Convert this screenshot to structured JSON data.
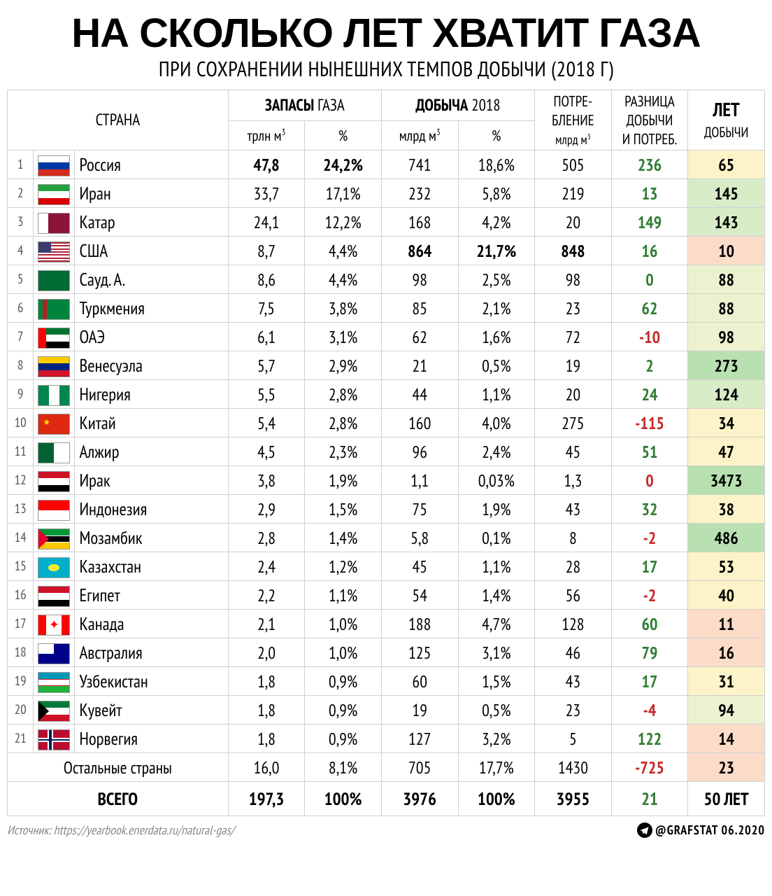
{
  "title": "НА СКОЛЬКО ЛЕТ ХВАТИТ ГАЗА",
  "subtitle": "ПРИ СОХРАНЕНИИ НЫНЕШНИХ ТЕМПОВ ДОБЫЧИ (2018 Г)",
  "headers": {
    "country": "СТРАНА",
    "reserves_group_b": "ЗАПАСЫ",
    "reserves_group_r": " ГАЗА",
    "production_group_b": "ДОБЫЧА",
    "production_group_r": " 2018",
    "reserves_unit": "трлн м",
    "reserves_pct": "%",
    "production_unit": "млрд м",
    "production_pct": "%",
    "consumption_l1": "ПОТРЕ-",
    "consumption_l2": "БЛЕНИЕ",
    "consumption_l3": "млрд м",
    "diff_l1": "РАЗНИЦА",
    "diff_l2": "ДОБЫЧИ",
    "diff_l3": "И ПОТРЕБ.",
    "years_l1": "ЛЕТ",
    "years_l2": "ДОБЫЧИ"
  },
  "year_tiers": {
    "very_high": {
      "min": 200,
      "color": "#b8e0b0"
    },
    "high": {
      "min": 100,
      "color": "#d9ecc8"
    },
    "mid_high": {
      "min": 70,
      "color": "#ecf2d0"
    },
    "mid": {
      "min": 30,
      "color": "#fcf3c8"
    },
    "low": {
      "min": 0,
      "color": "#fbdcc8"
    }
  },
  "rows": [
    {
      "rank": 1,
      "flag": "ru",
      "country": "Россия",
      "rv": "47,8",
      "rp": "24,2%",
      "pv": "741",
      "pp": "18,6%",
      "cons": "505",
      "diff": 236,
      "years": 65,
      "bold_r": true
    },
    {
      "rank": 2,
      "flag": "ir",
      "country": "Иран",
      "rv": "33,7",
      "rp": "17,1%",
      "pv": "232",
      "pp": "5,8%",
      "cons": "219",
      "diff": 13,
      "years": 145
    },
    {
      "rank": 3,
      "flag": "qa",
      "country": "Катар",
      "rv": "24,1",
      "rp": "12,2%",
      "pv": "168",
      "pp": "4,2%",
      "cons": "20",
      "diff": 149,
      "years": 143
    },
    {
      "rank": 4,
      "flag": "us",
      "country": "США",
      "rv": "8,7",
      "rp": "4,4%",
      "pv": "864",
      "pp": "21,7%",
      "cons": "848",
      "diff": 16,
      "years": 10,
      "bold_p": true,
      "bold_c": true
    },
    {
      "rank": 5,
      "flag": "sa",
      "country": "Сауд. А.",
      "rv": "8,6",
      "rp": "4,4%",
      "pv": "98",
      "pp": "2,5%",
      "cons": "98",
      "diff": 0,
      "diff_pos": true,
      "years": 88
    },
    {
      "rank": 6,
      "flag": "tm",
      "country": "Туркмения",
      "rv": "7,5",
      "rp": "3,8%",
      "pv": "85",
      "pp": "2,1%",
      "cons": "23",
      "diff": 62,
      "years": 88
    },
    {
      "rank": 7,
      "flag": "ae",
      "country": "ОАЭ",
      "rv": "6,1",
      "rp": "3,1%",
      "pv": "62",
      "pp": "1,6%",
      "cons": "72",
      "diff": -10,
      "years": 98
    },
    {
      "rank": 8,
      "flag": "ve",
      "country": "Венесуэла",
      "rv": "5,7",
      "rp": "2,9%",
      "pv": "21",
      "pp": "0,5%",
      "cons": "19",
      "diff": 2,
      "years": 273
    },
    {
      "rank": 9,
      "flag": "ng",
      "country": "Нигерия",
      "rv": "5,5",
      "rp": "2,8%",
      "pv": "44",
      "pp": "1,1%",
      "cons": "20",
      "diff": 24,
      "years": 124
    },
    {
      "rank": 10,
      "flag": "cn",
      "country": "Китай",
      "rv": "5,4",
      "rp": "2,8%",
      "pv": "160",
      "pp": "4,0%",
      "cons": "275",
      "diff": -115,
      "years": 34
    },
    {
      "rank": 11,
      "flag": "dz",
      "country": "Алжир",
      "rv": "4,5",
      "rp": "2,3%",
      "pv": "96",
      "pp": "2,4%",
      "cons": "45",
      "diff": 51,
      "years": 47
    },
    {
      "rank": 12,
      "flag": "iq",
      "country": "Ирак",
      "rv": "3,8",
      "rp": "1,9%",
      "pv": "1,1",
      "pp": "0,03%",
      "cons": "1,3",
      "diff": 0,
      "diff_neg": true,
      "years": 3473
    },
    {
      "rank": 13,
      "flag": "id",
      "country": "Индонезия",
      "rv": "2,9",
      "rp": "1,5%",
      "pv": "75",
      "pp": "1,9%",
      "cons": "43",
      "diff": 32,
      "years": 38
    },
    {
      "rank": 14,
      "flag": "mz",
      "country": "Мозамбик",
      "rv": "2,8",
      "rp": "1,4%",
      "pv": "5,8",
      "pp": "0,1%",
      "cons": "8",
      "diff": -2,
      "years": 486
    },
    {
      "rank": 15,
      "flag": "kz",
      "country": "Казахстан",
      "rv": "2,4",
      "rp": "1,2%",
      "pv": "45",
      "pp": "1,1%",
      "cons": "28",
      "diff": 17,
      "years": 53
    },
    {
      "rank": 16,
      "flag": "eg",
      "country": "Египет",
      "rv": "2,2",
      "rp": "1,1%",
      "pv": "54",
      "pp": "1,4%",
      "cons": "56",
      "diff": -2,
      "years": 40
    },
    {
      "rank": 17,
      "flag": "ca",
      "country": "Канада",
      "rv": "2,1",
      "rp": "1,0%",
      "pv": "188",
      "pp": "4,7%",
      "cons": "128",
      "diff": 60,
      "years": 11
    },
    {
      "rank": 18,
      "flag": "au",
      "country": "Австралия",
      "rv": "2,0",
      "rp": "1,0%",
      "pv": "125",
      "pp": "3,1%",
      "cons": "46",
      "diff": 79,
      "years": 16
    },
    {
      "rank": 19,
      "flag": "uz",
      "country": "Узбекистан",
      "rv": "1,8",
      "rp": "0,9%",
      "pv": "60",
      "pp": "1,5%",
      "cons": "43",
      "diff": 17,
      "years": 31
    },
    {
      "rank": 20,
      "flag": "kw",
      "country": "Кувейт",
      "rv": "1,8",
      "rp": "0,9%",
      "pv": "19",
      "pp": "0,5%",
      "cons": "23",
      "diff": -4,
      "years": 94
    },
    {
      "rank": 21,
      "flag": "no",
      "country": "Норвегия",
      "rv": "1,8",
      "rp": "0,9%",
      "pv": "127",
      "pp": "3,2%",
      "cons": "5",
      "diff": 122,
      "years": 14
    }
  ],
  "others": {
    "label": "Остальные страны",
    "rv": "16,0",
    "rp": "8,1%",
    "pv": "705",
    "pp": "17,7%",
    "cons": "1430",
    "diff": -725,
    "years": 23
  },
  "total": {
    "label": "ВСЕГО",
    "rv": "197,3",
    "rp": "100%",
    "pv": "3976",
    "pp": "100%",
    "cons": "3955",
    "diff": 21,
    "years_label": "50 ЛЕТ"
  },
  "footer": {
    "source": "Источник: https://yearbook.enerdata.ru/natural-gas/",
    "credit": "@GRAFSTAT 06.2020"
  },
  "flags": {
    "ru": [
      [
        "h",
        "#fff",
        0,
        33.3
      ],
      [
        "h",
        "#0039a6",
        33.3,
        33.4
      ],
      [
        "h",
        "#d52b1e",
        66.7,
        33.3
      ]
    ],
    "ir": [
      [
        "h",
        "#239f40",
        0,
        33.3
      ],
      [
        "h",
        "#fff",
        33.3,
        33.4
      ],
      [
        "h",
        "#da0000",
        66.7,
        33.3
      ]
    ],
    "qa": [
      [
        "full",
        "#8a1538"
      ],
      [
        "v",
        "#fff",
        0,
        30
      ]
    ],
    "us": [
      [
        "full",
        "#b22234"
      ],
      [
        "h",
        "#fff",
        7.7,
        7.7
      ],
      [
        "h",
        "#fff",
        23.1,
        7.7
      ],
      [
        "h",
        "#fff",
        38.5,
        7.7
      ],
      [
        "h",
        "#fff",
        53.8,
        7.7
      ],
      [
        "h",
        "#fff",
        69.2,
        7.7
      ],
      [
        "h",
        "#fff",
        84.6,
        7.7
      ],
      [
        "rect",
        "#3c3b6e",
        0,
        0,
        40,
        53.8
      ]
    ],
    "sa": [
      [
        "full",
        "#006c35"
      ]
    ],
    "tm": [
      [
        "full",
        "#00843d"
      ],
      [
        "v",
        "#b22222",
        12,
        14
      ]
    ],
    "ae": [
      [
        "h",
        "#00732f",
        0,
        33.3
      ],
      [
        "h",
        "#fff",
        33.3,
        33.4
      ],
      [
        "h",
        "#000",
        66.7,
        33.3
      ],
      [
        "v",
        "#ff0000",
        0,
        25
      ]
    ],
    "ve": [
      [
        "h",
        "#ffcc00",
        0,
        33.3
      ],
      [
        "h",
        "#00247d",
        33.3,
        33.4
      ],
      [
        "h",
        "#cf142b",
        66.7,
        33.3
      ]
    ],
    "ng": [
      [
        "v",
        "#008751",
        0,
        33.3
      ],
      [
        "v",
        "#fff",
        33.3,
        33.4
      ],
      [
        "v",
        "#008751",
        66.7,
        33.3
      ]
    ],
    "cn": [
      [
        "full",
        "#de2910"
      ],
      [
        "star",
        "#ffde00",
        6,
        4,
        6
      ]
    ],
    "dz": [
      [
        "v",
        "#006233",
        0,
        50
      ],
      [
        "v",
        "#fff",
        50,
        50
      ]
    ],
    "iq": [
      [
        "h",
        "#ce1126",
        0,
        33.3
      ],
      [
        "h",
        "#fff",
        33.3,
        33.4
      ],
      [
        "h",
        "#000",
        66.7,
        33.3
      ]
    ],
    "id": [
      [
        "h",
        "#ff0000",
        0,
        50
      ],
      [
        "h",
        "#fff",
        50,
        50
      ]
    ],
    "mz": [
      [
        "h",
        "#009639",
        0,
        31
      ],
      [
        "h",
        "#fff",
        31,
        6
      ],
      [
        "h",
        "#000",
        37,
        26
      ],
      [
        "h",
        "#fff",
        63,
        6
      ],
      [
        "h",
        "#ffca00",
        69,
        31
      ],
      [
        "tri",
        "#e4002b",
        0,
        0,
        40,
        100
      ]
    ],
    "kz": [
      [
        "full",
        "#00afca"
      ],
      [
        "circ",
        "#ffec2d",
        50,
        50,
        18
      ]
    ],
    "eg": [
      [
        "h",
        "#ce1126",
        0,
        33.3
      ],
      [
        "h",
        "#fff",
        33.3,
        33.4
      ],
      [
        "h",
        "#000",
        66.7,
        33.3
      ]
    ],
    "ca": [
      [
        "v",
        "#ff0000",
        0,
        25
      ],
      [
        "v",
        "#fff",
        25,
        50
      ],
      [
        "v",
        "#ff0000",
        75,
        25
      ],
      [
        "leaf",
        "#ff0000"
      ]
    ],
    "au": [
      [
        "full",
        "#00008b"
      ],
      [
        "rect",
        "#fff",
        0,
        0,
        50,
        50
      ]
    ],
    "uz": [
      [
        "h",
        "#0099b5",
        0,
        33.3
      ],
      [
        "h",
        "#fff",
        33.3,
        33.4
      ],
      [
        "h",
        "#1eb53a",
        66.7,
        33.3
      ],
      [
        "h",
        "#ce1126",
        31,
        4
      ],
      [
        "h",
        "#ce1126",
        65,
        4
      ]
    ],
    "kw": [
      [
        "h",
        "#007a3d",
        0,
        33.3
      ],
      [
        "h",
        "#fff",
        33.3,
        33.4
      ],
      [
        "h",
        "#ce1126",
        66.7,
        33.3
      ],
      [
        "tri",
        "#000",
        0,
        0,
        30,
        100
      ]
    ],
    "no": [
      [
        "full",
        "#ba0c2f"
      ],
      [
        "v",
        "#fff",
        28,
        20
      ],
      [
        "h",
        "#fff",
        40,
        20
      ],
      [
        "v",
        "#00205b",
        33,
        10
      ],
      [
        "h",
        "#00205b",
        45,
        10
      ]
    ]
  }
}
